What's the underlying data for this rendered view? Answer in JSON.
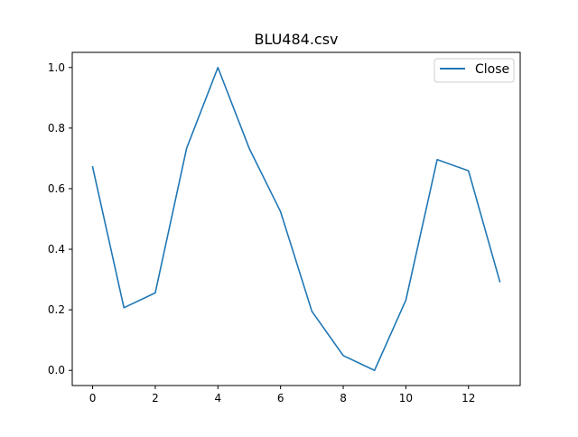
{
  "chart_data": {
    "type": "line",
    "title": "BLU484.csv",
    "xlabel": "",
    "ylabel": "",
    "x": [
      0,
      1,
      2,
      3,
      4,
      5,
      6,
      7,
      8,
      9,
      10,
      11,
      12,
      13
    ],
    "series": [
      {
        "name": "Close",
        "color": "#1f77b4",
        "values": [
          0.672,
          0.207,
          0.256,
          0.733,
          1.0,
          0.733,
          0.524,
          0.195,
          0.049,
          0.0,
          0.232,
          0.696,
          0.659,
          0.293
        ]
      }
    ],
    "xlim": [
      -0.65,
      13.65
    ],
    "ylim": [
      -0.05,
      1.05
    ],
    "xticks": [
      0,
      2,
      4,
      6,
      8,
      10,
      12
    ],
    "xtick_labels": [
      "0",
      "2",
      "4",
      "6",
      "8",
      "10",
      "12"
    ],
    "yticks": [
      0.0,
      0.2,
      0.4,
      0.6,
      0.8,
      1.0
    ],
    "ytick_labels": [
      "0.0",
      "0.2",
      "0.4",
      "0.6",
      "0.8",
      "1.0"
    ],
    "grid": false,
    "legend_position": "top-right"
  }
}
